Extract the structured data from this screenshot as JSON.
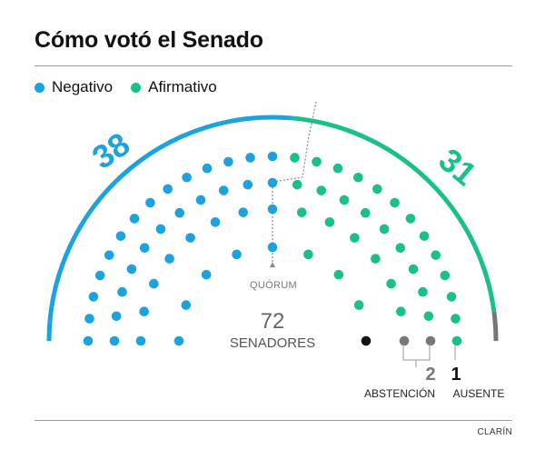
{
  "title": "Cómo votó el Senado",
  "source": "CLARÍN",
  "colors": {
    "negativo": "#1aa3df",
    "afirmativo": "#19c08c",
    "abstencion": "#777777",
    "ausente": "#111111"
  },
  "chart_data": {
    "type": "parliament",
    "total": 72,
    "total_label": "SENADORES",
    "quorum_label": "QUÓRUM",
    "series": [
      {
        "name": "Negativo",
        "value": 38,
        "color": "#1aa3df"
      },
      {
        "name": "Afirmativo",
        "value": 31,
        "color": "#19c08c"
      },
      {
        "name": "ABSTENCIÓN",
        "value": 2,
        "color": "#777777"
      },
      {
        "name": "AUSENTE",
        "value": 1,
        "color": "#111111"
      }
    ]
  }
}
